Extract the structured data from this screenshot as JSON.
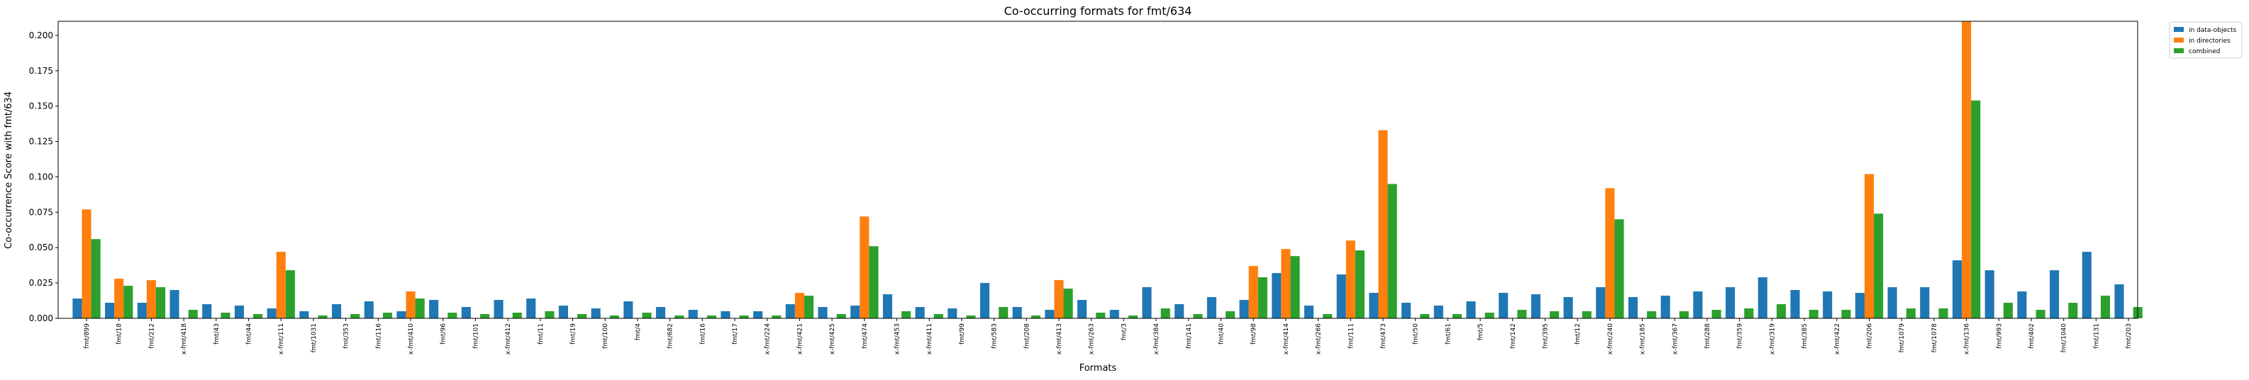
{
  "chart_data": {
    "type": "bar",
    "title": "Co-occurring formats for fmt/634",
    "xlabel": "Formats",
    "ylabel": "Co-occurrence Score with fmt/634",
    "ylim": [
      0,
      0.21
    ],
    "yticks": [
      "0.000",
      "0.025",
      "0.050",
      "0.075",
      "0.100",
      "0.125",
      "0.150",
      "0.175",
      "0.200"
    ],
    "grid": false,
    "legend_position": "outside-top-right",
    "categories": [
      "fmt/899",
      "fmt/18",
      "fmt/212",
      "x-fmt/418",
      "fmt/43",
      "fmt/44",
      "x-fmt/111",
      "fmt/1031",
      "fmt/353",
      "fmt/116",
      "x-fmt/410",
      "fmt/96",
      "fmt/101",
      "x-fmt/412",
      "fmt/11",
      "fmt/19",
      "fmt/100",
      "fmt/4",
      "fmt/682",
      "fmt/16",
      "fmt/17",
      "x-fmt/224",
      "x-fmt/421",
      "x-fmt/425",
      "fmt/474",
      "x-fmt/453",
      "x-fmt/411",
      "fmt/99",
      "fmt/583",
      "fmt/208",
      "x-fmt/413",
      "x-fmt/263",
      "fmt/3",
      "x-fmt/384",
      "fmt/141",
      "fmt/40",
      "fmt/98",
      "x-fmt/414",
      "x-fmt/266",
      "fmt/111",
      "fmt/473",
      "fmt/50",
      "fmt/61",
      "fmt/5",
      "fmt/142",
      "fmt/395",
      "fmt/12",
      "x-fmt/240",
      "x-fmt/185",
      "x-fmt/367",
      "fmt/288",
      "fmt/359",
      "x-fmt/319",
      "fmt/385",
      "x-fmt/422",
      "fmt/206",
      "fmt/1079",
      "fmt/1078",
      "x-fmt/136",
      "fmt/993",
      "fmt/402",
      "fmt/1040",
      "fmt/131",
      "fmt/203"
    ],
    "series": [
      {
        "name": "in data-objects",
        "color": "#1f77b4",
        "values": [
          0.014,
          0.011,
          0.011,
          0.02,
          0.01,
          0.009,
          0.007,
          0.005,
          0.01,
          0.012,
          0.005,
          0.013,
          0.008,
          0.013,
          0.014,
          0.009,
          0.007,
          0.012,
          0.008,
          0.006,
          0.005,
          0.005,
          0.01,
          0.008,
          0.009,
          0.017,
          0.008,
          0.007,
          0.025,
          0.008,
          0.006,
          0.013,
          0.006,
          0.022,
          0.01,
          0.015,
          0.013,
          0.032,
          0.009,
          0.031,
          0.018,
          0.011,
          0.009,
          0.012,
          0.018,
          0.017,
          0.015,
          0.022,
          0.015,
          0.016,
          0.019,
          0.022,
          0.029,
          0.02,
          0.019,
          0.018,
          0.022,
          0.022,
          0.041,
          0.034,
          0.019,
          0.034,
          0.047,
          0.024
        ]
      },
      {
        "name": "in directories",
        "color": "#ff7f0e",
        "values": [
          0.077,
          0.028,
          0.027,
          0,
          0,
          0,
          0.047,
          0,
          0,
          0,
          0.019,
          0,
          0,
          0,
          0,
          0,
          0,
          0,
          0,
          0,
          0,
          0,
          0.018,
          0,
          0.072,
          0,
          0,
          0,
          0,
          0,
          0.027,
          0,
          0,
          0,
          0,
          0,
          0.037,
          0.049,
          0,
          0.055,
          0.133,
          0,
          0,
          0,
          0,
          0,
          0,
          0.092,
          0,
          0,
          0,
          0,
          0,
          0,
          0,
          0.102,
          0,
          0,
          0.21,
          0,
          0,
          0,
          0,
          0
        ]
      },
      {
        "name": "combined",
        "color": "#2ca02c",
        "values": [
          0.056,
          0.023,
          0.022,
          0.006,
          0.004,
          0.003,
          0.034,
          0.002,
          0.003,
          0.004,
          0.014,
          0.004,
          0.003,
          0.004,
          0.005,
          0.003,
          0.002,
          0.004,
          0.002,
          0.002,
          0.002,
          0.002,
          0.016,
          0.003,
          0.051,
          0.005,
          0.003,
          0.002,
          0.008,
          0.002,
          0.021,
          0.004,
          0.002,
          0.007,
          0.003,
          0.005,
          0.029,
          0.044,
          0.003,
          0.048,
          0.095,
          0.003,
          0.003,
          0.004,
          0.006,
          0.005,
          0.005,
          0.07,
          0.005,
          0.005,
          0.006,
          0.007,
          0.01,
          0.006,
          0.006,
          0.074,
          0.007,
          0.007,
          0.154,
          0.011,
          0.006,
          0.011,
          0.016,
          0.008
        ]
      }
    ]
  }
}
